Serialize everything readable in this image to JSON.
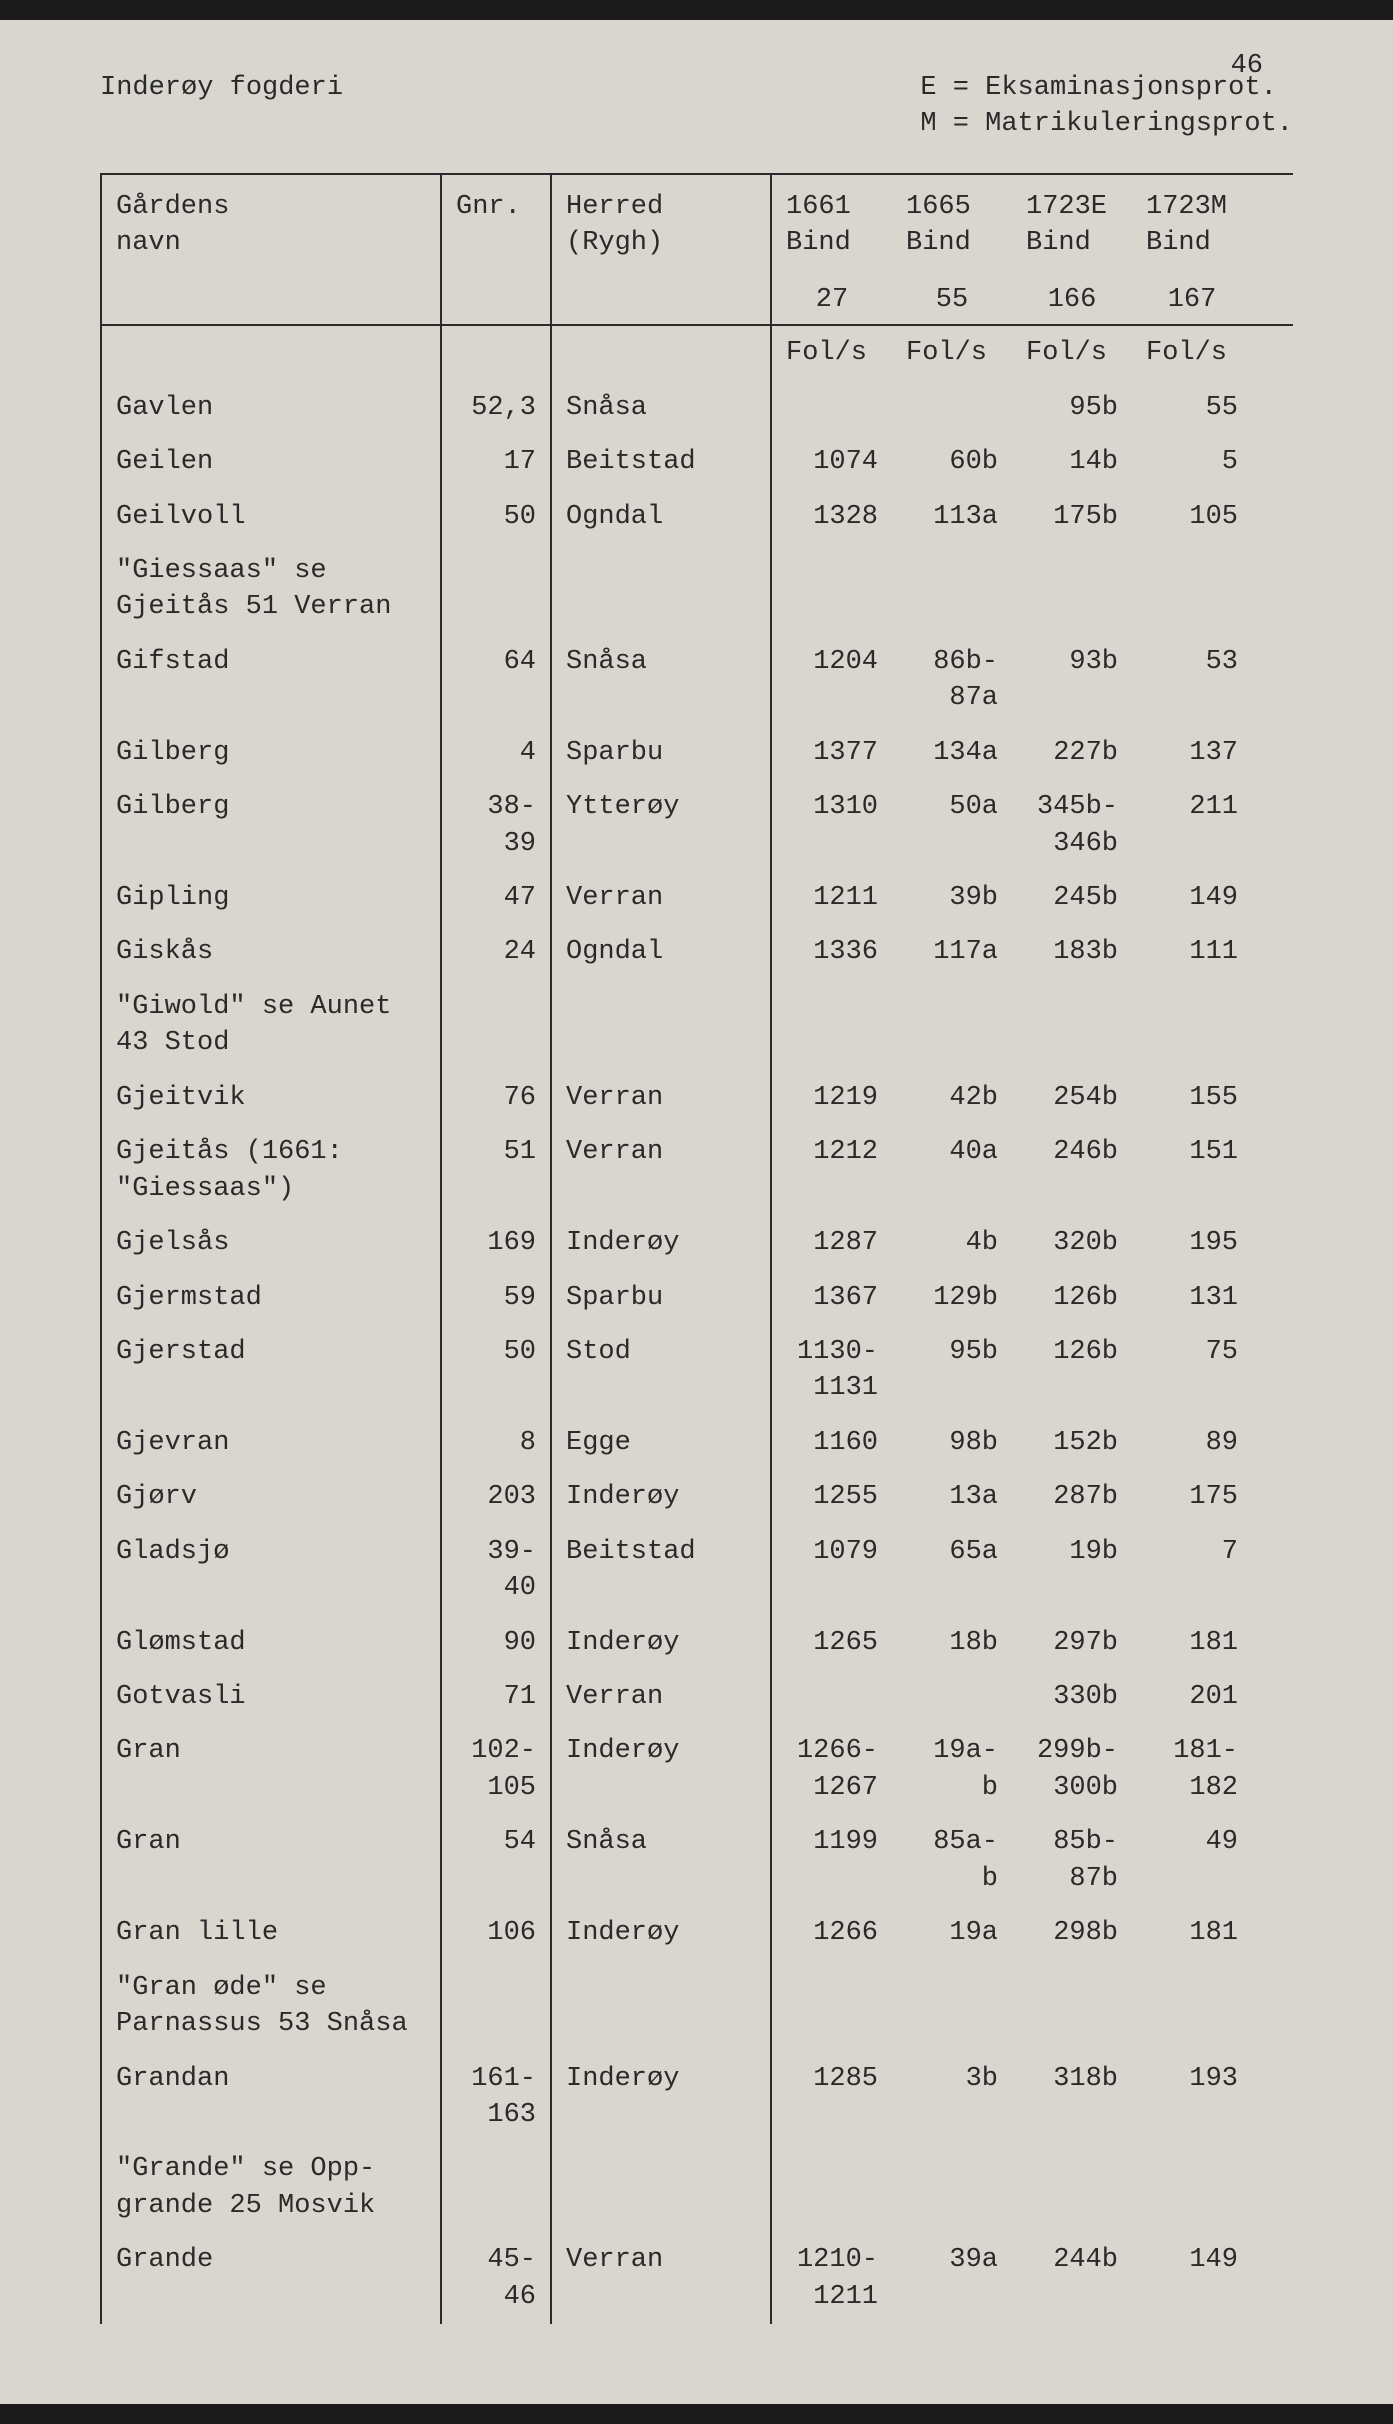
{
  "page_number": "46",
  "header": {
    "title": "Inderøy fogderi",
    "legend": {
      "line1": "E = Eksaminasjonsprot.",
      "line2": "M = Matrikuleringsprot."
    }
  },
  "columns": {
    "name": {
      "line1": "Gårdens",
      "line2": "navn"
    },
    "gnr": "Gnr.",
    "herred": {
      "line1": "Herred",
      "line2": "(Rygh)"
    },
    "y1": {
      "line1": "1661",
      "line2": "Bind",
      "line3": "27"
    },
    "y2": {
      "line1": "1665",
      "line2": "Bind",
      "line3": "55"
    },
    "y3": {
      "line1": "1723E",
      "line2": "Bind",
      "line3": "166"
    },
    "y4": {
      "line1": "1723M",
      "line2": "Bind",
      "line3": "167"
    }
  },
  "fols_label": "Fol/s",
  "rows": [
    {
      "name": "Gavlen",
      "gnr": "52,3",
      "herred": "Snåsa",
      "y1": "",
      "y2": "",
      "y3": "95b",
      "y4": "55"
    },
    {
      "name": "Geilen",
      "gnr": "17",
      "herred": "Beitstad",
      "y1": "1074",
      "y2": "60b",
      "y3": "14b",
      "y4": "5"
    },
    {
      "name": "Geilvoll",
      "gnr": "50",
      "herred": "Ogndal",
      "y1": "1328",
      "y2": "113a",
      "y3": "175b",
      "y4": "105"
    },
    {
      "name": "\"Giessaas\" se\nGjeitås 51 Verran",
      "gnr": "",
      "herred": "",
      "y1": "",
      "y2": "",
      "y3": "",
      "y4": ""
    },
    {
      "name": "Gifstad",
      "gnr": "64",
      "herred": "Snåsa",
      "y1": "1204",
      "y2": "86b-\n87a",
      "y3": "93b",
      "y4": "53"
    },
    {
      "name": "Gilberg",
      "gnr": "4",
      "herred": "Sparbu",
      "y1": "1377",
      "y2": "134a",
      "y3": "227b",
      "y4": "137"
    },
    {
      "name": "Gilberg",
      "gnr": "38-\n39",
      "herred": "Ytterøy",
      "y1": "1310",
      "y2": "50a",
      "y3": "345b-\n346b",
      "y4": "211"
    },
    {
      "name": "Gipling",
      "gnr": "47",
      "herred": "Verran",
      "y1": "1211",
      "y2": "39b",
      "y3": "245b",
      "y4": "149"
    },
    {
      "name": "Giskås",
      "gnr": "24",
      "herred": "Ogndal",
      "y1": "1336",
      "y2": "117a",
      "y3": "183b",
      "y4": "111"
    },
    {
      "name": "\"Giwold\" se Aunet\n43 Stod",
      "gnr": "",
      "herred": "",
      "y1": "",
      "y2": "",
      "y3": "",
      "y4": ""
    },
    {
      "name": "Gjeitvik",
      "gnr": "76",
      "herred": "Verran",
      "y1": "1219",
      "y2": "42b",
      "y3": "254b",
      "y4": "155"
    },
    {
      "name": "Gjeitås (1661:\n\"Giessaas\")",
      "gnr": "51",
      "herred": "Verran",
      "y1": "1212",
      "y2": "40a",
      "y3": "246b",
      "y4": "151"
    },
    {
      "name": "Gjelsås",
      "gnr": "169",
      "herred": "Inderøy",
      "y1": "1287",
      "y2": "4b",
      "y3": "320b",
      "y4": "195"
    },
    {
      "name": "Gjermstad",
      "gnr": "59",
      "herred": "Sparbu",
      "y1": "1367",
      "y2": "129b",
      "y3": "126b",
      "y4": "131"
    },
    {
      "name": "Gjerstad",
      "gnr": "50",
      "herred": "Stod",
      "y1": "1130-\n1131",
      "y2": "95b",
      "y3": "126b",
      "y4": "75"
    },
    {
      "name": "Gjevran",
      "gnr": "8",
      "herred": "Egge",
      "y1": "1160",
      "y2": "98b",
      "y3": "152b",
      "y4": "89"
    },
    {
      "name": "Gjørv",
      "gnr": "203",
      "herred": "Inderøy",
      "y1": "1255",
      "y2": "13a",
      "y3": "287b",
      "y4": "175"
    },
    {
      "name": "Gladsjø",
      "gnr": "39-\n40",
      "herred": "Beitstad",
      "y1": "1079",
      "y2": "65a",
      "y3": "19b",
      "y4": "7"
    },
    {
      "name": "Glømstad",
      "gnr": "90",
      "herred": "Inderøy",
      "y1": "1265",
      "y2": "18b",
      "y3": "297b",
      "y4": "181"
    },
    {
      "name": "Gotvasli",
      "gnr": "71",
      "herred": "Verran",
      "y1": "",
      "y2": "",
      "y3": "330b",
      "y4": "201"
    },
    {
      "name": "Gran",
      "gnr": "102-\n105",
      "herred": "Inderøy",
      "y1": "1266-\n1267",
      "y2": "19a-\nb",
      "y3": "299b-\n300b",
      "y4": "181-\n182"
    },
    {
      "name": "Gran",
      "gnr": "54",
      "herred": "Snåsa",
      "y1": "1199",
      "y2": "85a-\nb",
      "y3": "85b-\n87b",
      "y4": "49"
    },
    {
      "name": "Gran lille",
      "gnr": "106",
      "herred": "Inderøy",
      "y1": "1266",
      "y2": "19a",
      "y3": "298b",
      "y4": "181"
    },
    {
      "name": "\"Gran øde\" se\nParnassus 53 Snåsa",
      "gnr": "",
      "herred": "",
      "y1": "",
      "y2": "",
      "y3": "",
      "y4": ""
    },
    {
      "name": "Grandan",
      "gnr": "161-\n163",
      "herred": "Inderøy",
      "y1": "1285",
      "y2": "3b",
      "y3": "318b",
      "y4": "193"
    },
    {
      "name": "\"Grande\" se Opp-\ngrande 25 Mosvik",
      "gnr": "",
      "herred": "",
      "y1": "",
      "y2": "",
      "y3": "",
      "y4": ""
    },
    {
      "name": "Grande",
      "gnr": "45-\n46",
      "herred": "Verran",
      "y1": "1210-\n1211",
      "y2": "39a",
      "y3": "244b",
      "y4": "149"
    }
  ],
  "style": {
    "background_color": "#d9d6cf",
    "text_color": "#2a2a2a",
    "border_color": "#2a2a2a",
    "font_family": "Courier New",
    "font_size_pt": 20
  }
}
